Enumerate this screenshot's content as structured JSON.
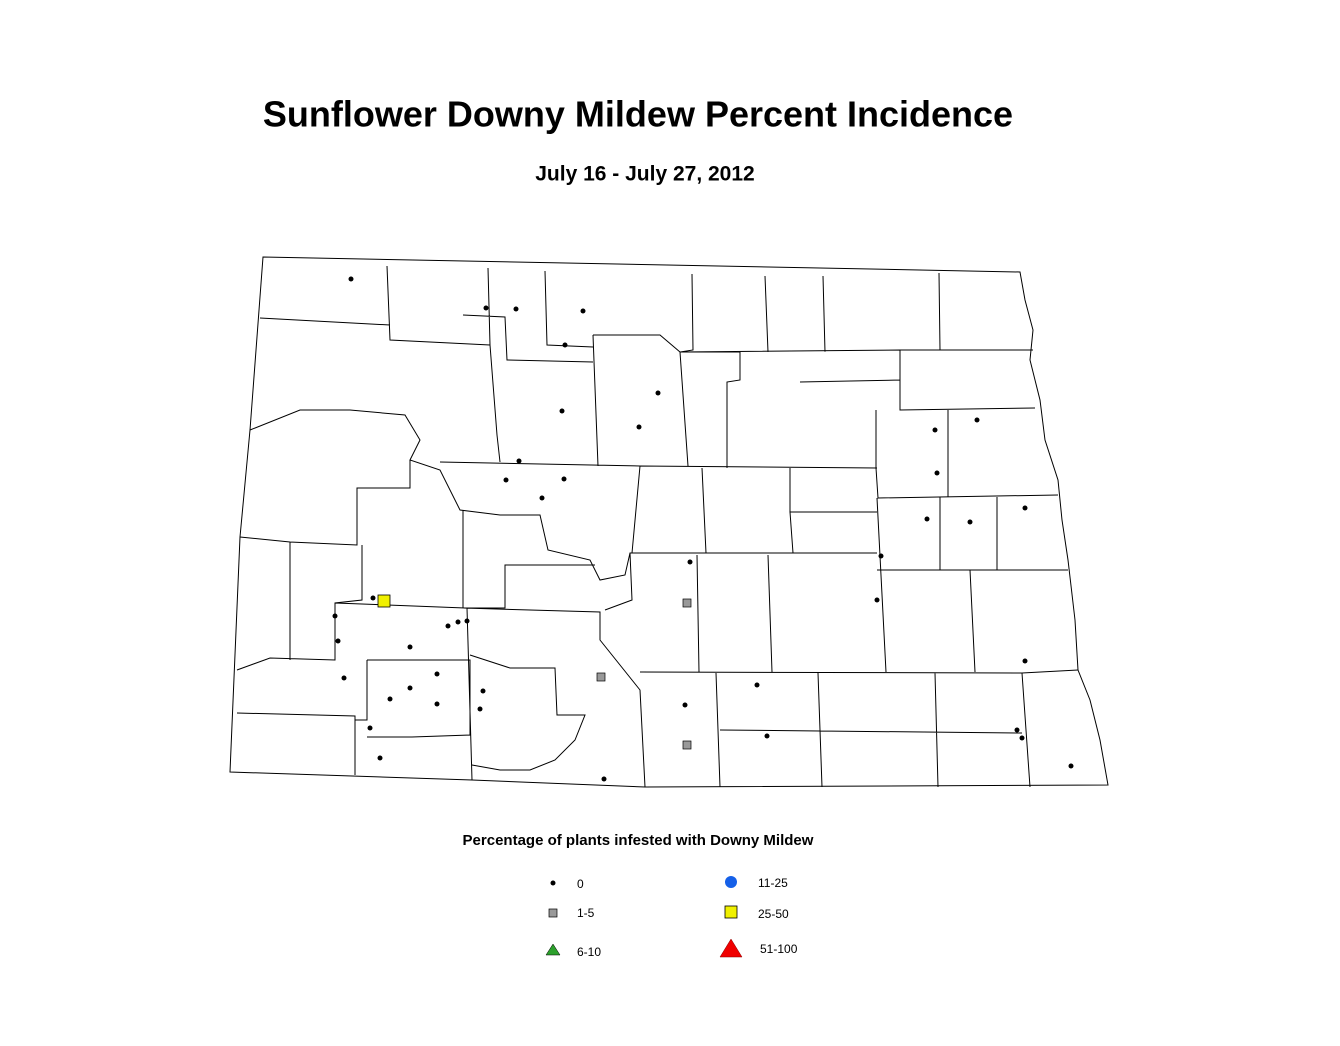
{
  "title": "Sunflower Downy Mildew Percent Incidence",
  "subtitle": "July 16 - July 27, 2012",
  "legend": {
    "title": "Percentage of plants infested with Downy Mildew",
    "items": [
      {
        "label": "0"
      },
      {
        "label": "1-5"
      },
      {
        "label": "6-10"
      },
      {
        "label": "11-25"
      },
      {
        "label": "25-50"
      },
      {
        "label": "51-100"
      }
    ]
  }
}
